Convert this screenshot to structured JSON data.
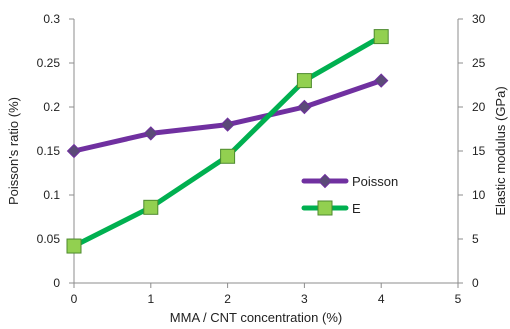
{
  "chart_data": {
    "type": "line",
    "title": "",
    "xlabel": "MMA / CNT concentration (%)",
    "ylabel_left": "Poisson's ratio (%)",
    "ylabel_right": "Elastic modulus (GPa)",
    "x": [
      0,
      1,
      2,
      3,
      4
    ],
    "xlim": [
      0,
      5
    ],
    "x_ticks": [
      "0",
      "1",
      "2",
      "3",
      "4",
      "5"
    ],
    "ylim_left": [
      0,
      0.3
    ],
    "y_ticks_left": [
      "0",
      "0.05",
      "0.1",
      "0.15",
      "0.2",
      "0.25",
      "0.3"
    ],
    "ylim_right": [
      0,
      30
    ],
    "y_ticks_right": [
      "0",
      "5",
      "10",
      "15",
      "20",
      "25",
      "30"
    ],
    "grid": false,
    "legend_position": "center-right",
    "series": [
      {
        "name": "Poisson",
        "axis": "left",
        "values": [
          0.15,
          0.17,
          0.18,
          0.2,
          0.23
        ],
        "color": "#7030A0",
        "marker": "diamond",
        "marker_color": "#5B4A78"
      },
      {
        "name": "E",
        "axis": "right",
        "values": [
          4.2,
          8.6,
          14.4,
          23,
          28
        ],
        "color": "#00B050",
        "marker": "square",
        "marker_color": "#92D050"
      }
    ]
  }
}
